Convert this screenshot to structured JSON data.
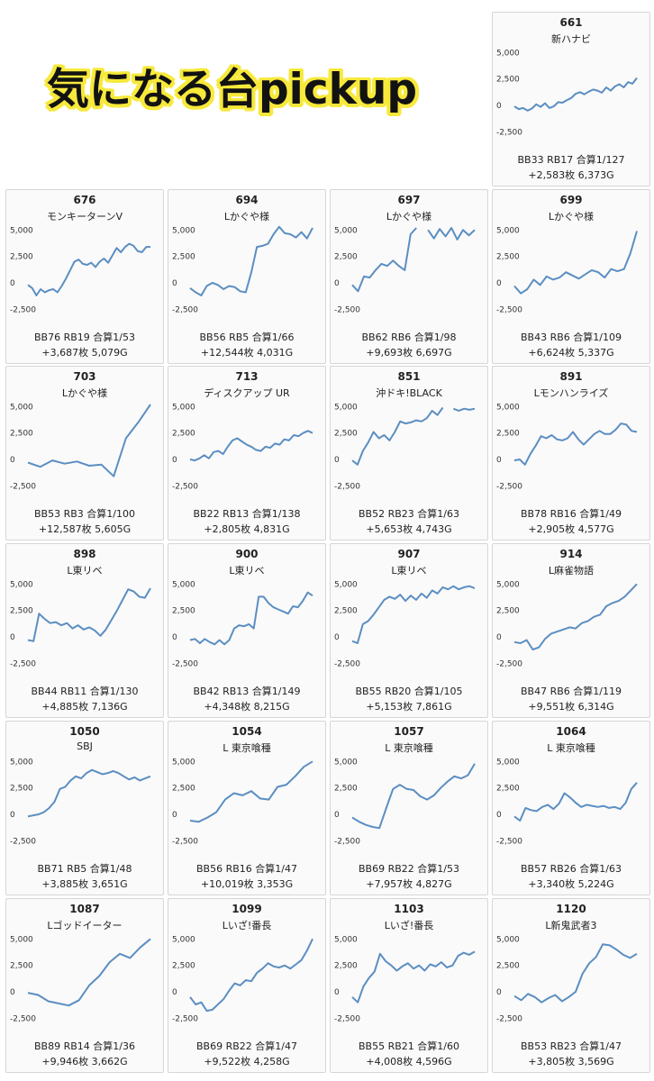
{
  "headline": "気になる台pickup",
  "colors": {
    "line": "#5b8ec2",
    "highlight": "#f7e93b",
    "card_bg": "#fafafa",
    "card_border": "#d6d6d6"
  },
  "chart_data": [
    {
      "type": "line",
      "title": "661",
      "subtitle": "新ハナビ",
      "stats1": "BB33 RB17 合算1/127",
      "stats2": "+2,583枚 6,373G",
      "ylim": [
        -3500,
        5200
      ],
      "yticks": [
        "5,000",
        "2,500",
        "0",
        "-2,500"
      ],
      "ytick_values": [
        5000,
        2500,
        0,
        -2500
      ],
      "y": [
        -100,
        -350,
        -250,
        -500,
        -300,
        100,
        -150,
        200,
        -250,
        -100,
        300,
        250,
        500,
        700,
        1100,
        1250,
        1050,
        1300,
        1500,
        1400,
        1200,
        1700,
        1400,
        1800,
        2000,
        1700,
        2200,
        2050,
        2600
      ]
    },
    {
      "type": "line",
      "title": "676",
      "subtitle": "モンキーターンV",
      "stats1": "BB76 RB19 合算1/53",
      "stats2": "+3,687枚 5,079G",
      "ylim": [
        -3500,
        5200
      ],
      "yticks": [
        "5,000",
        "2,500",
        "0",
        "-2,500"
      ],
      "ytick_values": [
        5000,
        2500,
        0,
        -2500
      ],
      "y": [
        -200,
        -500,
        -1200,
        -600,
        -900,
        -700,
        -600,
        -900,
        -300,
        400,
        1200,
        2000,
        2200,
        1800,
        1700,
        1900,
        1500,
        2000,
        2300,
        1900,
        2600,
        3300,
        2900,
        3400,
        3700,
        3500,
        3000,
        2900,
        3400,
        3400
      ]
    },
    {
      "type": "line",
      "title": "694",
      "subtitle": "Lかぐや様",
      "stats1": "BB56 RB5 合算1/66",
      "stats2": "+12,544枚 4,031G",
      "ylim": [
        -3500,
        5200
      ],
      "yticks": [
        "5,000",
        "2,500",
        "0",
        "-2,500"
      ],
      "ytick_values": [
        5000,
        2500,
        0,
        -2500
      ],
      "y": [
        -500,
        -900,
        -1200,
        -300,
        0,
        -200,
        -600,
        -300,
        -400,
        -800,
        -900,
        1000,
        3400,
        3500,
        3700,
        4600,
        5300,
        4700,
        4600,
        4300,
        4800,
        4200,
        5200
      ]
    },
    {
      "type": "line",
      "title": "697",
      "subtitle": "Lかぐや様",
      "stats1": "BB62 RB6 合算1/98",
      "stats2": "+9,693枚 6,697G",
      "ylim": [
        -3500,
        5200
      ],
      "yticks": [
        "5,000",
        "2,500",
        "0",
        "-2,500"
      ],
      "ytick_values": [
        5000,
        2500,
        0,
        -2500
      ],
      "y": [
        -200,
        -800,
        600,
        500,
        1200,
        1800,
        1600,
        2100,
        1600,
        1200,
        4600,
        5200,
        null,
        5000,
        4200,
        5100,
        4400,
        5200,
        4100,
        5000,
        4500,
        5000
      ]
    },
    {
      "type": "line",
      "title": "699",
      "subtitle": "Lかぐや様",
      "stats1": "BB43 RB6 合算1/109",
      "stats2": "+6,624枚 5,337G",
      "ylim": [
        -3500,
        5200
      ],
      "yticks": [
        "5,000",
        "2,500",
        "0",
        "-2,500"
      ],
      "ytick_values": [
        5000,
        2500,
        0,
        -2500
      ],
      "y": [
        -300,
        -1000,
        -600,
        300,
        -200,
        600,
        300,
        500,
        1000,
        700,
        400,
        800,
        1200,
        1000,
        500,
        1300,
        1100,
        1300,
        2800,
        4900
      ]
    },
    {
      "type": "line",
      "title": "703",
      "subtitle": "Lかぐや様",
      "stats1": "BB53 RB3 合算1/100",
      "stats2": "+12,587枚 5,605G",
      "ylim": [
        -3500,
        5200
      ],
      "yticks": [
        "5,000",
        "2,500",
        "0",
        "-2,500"
      ],
      "ytick_values": [
        5000,
        2500,
        0,
        -2500
      ],
      "y": [
        -300,
        -700,
        -100,
        -400,
        -200,
        -600,
        -500,
        -1600,
        2000,
        3500,
        5200
      ]
    },
    {
      "type": "line",
      "title": "713",
      "subtitle": "ディスクアップ UR",
      "stats1": "BB22 RB13 合算1/138",
      "stats2": "+2,805枚 4,831G",
      "ylim": [
        -3500,
        5200
      ],
      "yticks": [
        "5,000",
        "2,500",
        "0",
        "-2,500"
      ],
      "ytick_values": [
        5000,
        2500,
        0,
        -2500
      ],
      "y": [
        0,
        -100,
        100,
        400,
        100,
        700,
        800,
        500,
        1200,
        1800,
        2000,
        1700,
        1400,
        1200,
        900,
        800,
        1200,
        1100,
        1500,
        1400,
        1900,
        1800,
        2300,
        2200,
        2500,
        2700,
        2500
      ]
    },
    {
      "type": "line",
      "title": "851",
      "subtitle": "沖ドキ!BLACK",
      "stats1": "BB52 RB23 合算1/63",
      "stats2": "+5,653枚 4,743G",
      "ylim": [
        -3500,
        5200
      ],
      "yticks": [
        "5,000",
        "2,500",
        "0",
        "-2,500"
      ],
      "ytick_values": [
        5000,
        2500,
        0,
        -2500
      ],
      "y": [
        -100,
        -500,
        800,
        1600,
        2600,
        2000,
        2300,
        1800,
        2600,
        3600,
        3400,
        3500,
        3700,
        3600,
        3900,
        4600,
        4200,
        4900,
        null,
        4800,
        4600,
        4800,
        4700,
        4800
      ]
    },
    {
      "type": "line",
      "title": "891",
      "subtitle": "Lモンハンライズ",
      "stats1": "BB78 RB16 合算1/49",
      "stats2": "+2,905枚 4,577G",
      "ylim": [
        -3500,
        5200
      ],
      "yticks": [
        "5,000",
        "2,500",
        "0",
        "-2,500"
      ],
      "ytick_values": [
        5000,
        2500,
        0,
        -2500
      ],
      "y": [
        -100,
        0,
        -500,
        500,
        1300,
        2200,
        2000,
        2300,
        1900,
        1800,
        2000,
        2600,
        1900,
        1400,
        1900,
        2400,
        2700,
        2400,
        2400,
        2800,
        3400,
        3300,
        2700,
        2600
      ]
    },
    {
      "type": "line",
      "title": "898",
      "subtitle": "L東リベ",
      "stats1": "BB44 RB11 合算1/130",
      "stats2": "+4,885枚 7,136G",
      "ylim": [
        -3500,
        5200
      ],
      "yticks": [
        "5,000",
        "2,500",
        "0",
        "-2,500"
      ],
      "ytick_values": [
        5000,
        2500,
        0,
        -2500
      ],
      "y": [
        -300,
        -400,
        2200,
        1700,
        1300,
        1400,
        1100,
        1300,
        800,
        1100,
        700,
        900,
        600,
        100,
        700,
        1600,
        2500,
        3500,
        4500,
        4300,
        3800,
        3700,
        4600
      ]
    },
    {
      "type": "line",
      "title": "900",
      "subtitle": "L東リベ",
      "stats1": "BB42 RB13 合算1/149",
      "stats2": "+4,348枚 8,215G",
      "ylim": [
        -3500,
        5200
      ],
      "yticks": [
        "5,000",
        "2,500",
        "0",
        "-2,500"
      ],
      "ytick_values": [
        5000,
        2500,
        0,
        -2500
      ],
      "y": [
        -300,
        -200,
        -600,
        -200,
        -500,
        -700,
        -300,
        -700,
        -300,
        800,
        1100,
        1000,
        1200,
        800,
        3800,
        3800,
        3200,
        2800,
        2600,
        2400,
        2200,
        2900,
        2800,
        3400,
        4200,
        3900
      ]
    },
    {
      "type": "line",
      "title": "907",
      "subtitle": "L東リベ",
      "stats1": "BB55 RB20 合算1/105",
      "stats2": "+5,153枚 7,861G",
      "ylim": [
        -3500,
        5200
      ],
      "yticks": [
        "5,000",
        "2,500",
        "0",
        "-2,500"
      ],
      "ytick_values": [
        5000,
        2500,
        0,
        -2500
      ],
      "y": [
        -400,
        -600,
        1200,
        1500,
        2100,
        2800,
        3500,
        3800,
        3600,
        4000,
        3400,
        3900,
        3500,
        4100,
        3700,
        4400,
        4100,
        4700,
        4500,
        4800,
        4500,
        4700,
        4800,
        4600
      ]
    },
    {
      "type": "line",
      "title": "914",
      "subtitle": "L麻雀物語",
      "stats1": "BB47 RB6 合算1/119",
      "stats2": "+9,551枚 6,314G",
      "ylim": [
        -3500,
        5200
      ],
      "yticks": [
        "5,000",
        "2,500",
        "0",
        "-2,500"
      ],
      "ytick_values": [
        5000,
        2500,
        0,
        -2500
      ],
      "y": [
        -500,
        -600,
        -300,
        -1200,
        -1000,
        -200,
        300,
        500,
        700,
        900,
        800,
        1300,
        1500,
        1900,
        2100,
        2900,
        3200,
        3400,
        3800,
        4400,
        5000
      ]
    },
    {
      "type": "line",
      "title": "1050",
      "subtitle": "SBJ",
      "stats1": "BB71 RB5 合算1/48",
      "stats2": "+3,885枚 3,651G",
      "ylim": [
        -3500,
        5200
      ],
      "yticks": [
        "5,000",
        "2,500",
        "0",
        "-2,500"
      ],
      "ytick_values": [
        5000,
        2500,
        0,
        -2500
      ],
      "y": [
        -200,
        -100,
        0,
        200,
        600,
        1200,
        2400,
        2600,
        3200,
        3600,
        3400,
        3900,
        4200,
        4000,
        3800,
        3900,
        4100,
        3900,
        3600,
        3300,
        3500,
        3200,
        3400,
        3600
      ]
    },
    {
      "type": "line",
      "title": "1054",
      "subtitle": "L 東京喰種",
      "stats1": "BB56 RB16 合算1/47",
      "stats2": "+10,019枚 3,353G",
      "ylim": [
        -3500,
        5200
      ],
      "yticks": [
        "5,000",
        "2,500",
        "0",
        "-2,500"
      ],
      "ytick_values": [
        5000,
        2500,
        0,
        -2500
      ],
      "y": [
        -600,
        -700,
        -300,
        200,
        1400,
        2000,
        1800,
        2200,
        1500,
        1400,
        2600,
        2800,
        3600,
        4500,
        5000
      ]
    },
    {
      "type": "line",
      "title": "1057",
      "subtitle": "L 東京喰種",
      "stats1": "BB69 RB22 合算1/53",
      "stats2": "+7,957枚 4,827G",
      "ylim": [
        -3500,
        5200
      ],
      "yticks": [
        "5,000",
        "2,500",
        "0",
        "-2,500"
      ],
      "ytick_values": [
        5000,
        2500,
        0,
        -2500
      ],
      "y": [
        -300,
        -700,
        -1000,
        -1200,
        -1300,
        600,
        2400,
        2800,
        2400,
        2300,
        1700,
        1400,
        1800,
        2500,
        3100,
        3600,
        3400,
        3700,
        4800
      ]
    },
    {
      "type": "line",
      "title": "1064",
      "subtitle": "L 東京喰種",
      "stats1": "BB57 RB26 合算1/63",
      "stats2": "+3,340枚 5,224G",
      "ylim": [
        -3500,
        5200
      ],
      "yticks": [
        "5,000",
        "2,500",
        "0",
        "-2,500"
      ],
      "ytick_values": [
        5000,
        2500,
        0,
        -2500
      ],
      "y": [
        -200,
        -600,
        600,
        400,
        300,
        700,
        900,
        500,
        1000,
        2000,
        1600,
        1100,
        700,
        900,
        800,
        700,
        800,
        600,
        700,
        500,
        1100,
        2400,
        3000
      ]
    },
    {
      "type": "line",
      "title": "1087",
      "subtitle": "Lゴッドイーター",
      "stats1": "BB89 RB14 合算1/36",
      "stats2": "+9,946枚 3,662G",
      "ylim": [
        -3500,
        5200
      ],
      "yticks": [
        "5,000",
        "2,500",
        "0",
        "-2,500"
      ],
      "ytick_values": [
        5000,
        2500,
        0,
        -2500
      ],
      "y": [
        -100,
        -300,
        -900,
        -1100,
        -1300,
        -800,
        600,
        1500,
        2800,
        3600,
        3200,
        4200,
        5000
      ]
    },
    {
      "type": "line",
      "title": "1099",
      "subtitle": "Lいざ!番長",
      "stats1": "BB69 RB22 合算1/47",
      "stats2": "+9,522枚 4,258G",
      "ylim": [
        -3500,
        5200
      ],
      "yticks": [
        "5,000",
        "2,500",
        "0",
        "-2,500"
      ],
      "ytick_values": [
        5000,
        2500,
        0,
        -2500
      ],
      "y": [
        -500,
        -1200,
        -1000,
        -1800,
        -1700,
        -1200,
        -700,
        100,
        800,
        600,
        1100,
        1000,
        1800,
        2200,
        2700,
        2400,
        2300,
        2500,
        2200,
        2600,
        3000,
        3900,
        5000
      ]
    },
    {
      "type": "line",
      "title": "1103",
      "subtitle": "Lいざ!番長",
      "stats1": "BB55 RB21 合算1/60",
      "stats2": "+4,008枚 4,596G",
      "ylim": [
        -3500,
        5200
      ],
      "yticks": [
        "5,000",
        "2,500",
        "0",
        "-2,500"
      ],
      "ytick_values": [
        5000,
        2500,
        0,
        -2500
      ],
      "y": [
        -500,
        -1000,
        500,
        1300,
        1900,
        3600,
        2900,
        2500,
        2000,
        2400,
        2700,
        2200,
        2500,
        2000,
        2600,
        2400,
        2800,
        2300,
        2500,
        3400,
        3700,
        3500,
        3800
      ]
    },
    {
      "type": "line",
      "title": "1120",
      "subtitle": "L新鬼武者3",
      "stats1": "BB53 RB23 合算1/47",
      "stats2": "+3,805枚 3,569G",
      "ylim": [
        -3500,
        5200
      ],
      "yticks": [
        "5,000",
        "2,500",
        "0",
        "-2,500"
      ],
      "ytick_values": [
        5000,
        2500,
        0,
        -2500
      ],
      "y": [
        -400,
        -800,
        -200,
        -500,
        -1000,
        -600,
        -300,
        -900,
        -500,
        0,
        1700,
        2700,
        3300,
        4500,
        4400,
        4000,
        3500,
        3200,
        3600
      ]
    }
  ]
}
